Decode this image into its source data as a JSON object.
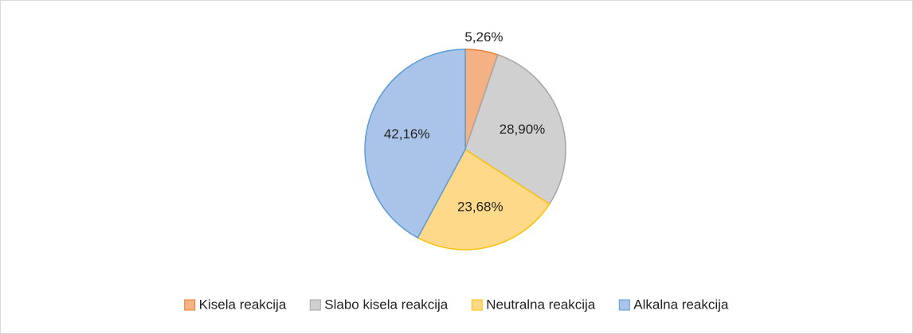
{
  "chart_data": {
    "type": "pie",
    "categories": [
      "Kisela reakcija",
      "Slabo kisela reakcija",
      "Neutralna reakcija",
      "Alkalna reakcija"
    ],
    "values": [
      5.26,
      28.9,
      23.68,
      42.16
    ],
    "value_labels": [
      "5,26%",
      "28,90%",
      "23,68%",
      "42,16%"
    ],
    "colors": [
      "#f4b183",
      "#d0d0d0",
      "#ffd98a",
      "#a9c4e8"
    ],
    "edge_colors": [
      "#ed7d31",
      "#a5a5a5",
      "#ffc000",
      "#5b9bd5"
    ],
    "legend": "bottom"
  }
}
